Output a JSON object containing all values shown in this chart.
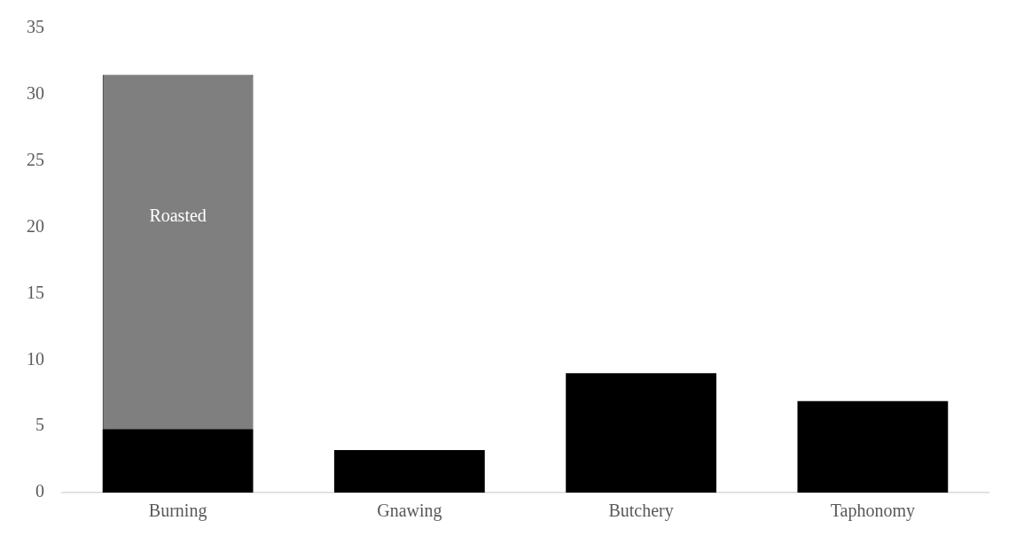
{
  "chart_data": {
    "type": "bar",
    "stacked": true,
    "categories": [
      "Burning",
      "Gnawing",
      "Butchery",
      "Taphonomy"
    ],
    "series": [
      {
        "color": "#000000",
        "values": [
          4.8,
          3.2,
          9.0,
          6.9
        ]
      },
      {
        "name": "Roasted",
        "color": "#7f7f7f",
        "values": [
          26.7,
          null,
          null,
          null
        ]
      }
    ],
    "ylim": [
      0,
      35
    ],
    "yticks": [
      0,
      5,
      10,
      15,
      20,
      25,
      30,
      35
    ],
    "grid": false,
    "legend": false
  }
}
